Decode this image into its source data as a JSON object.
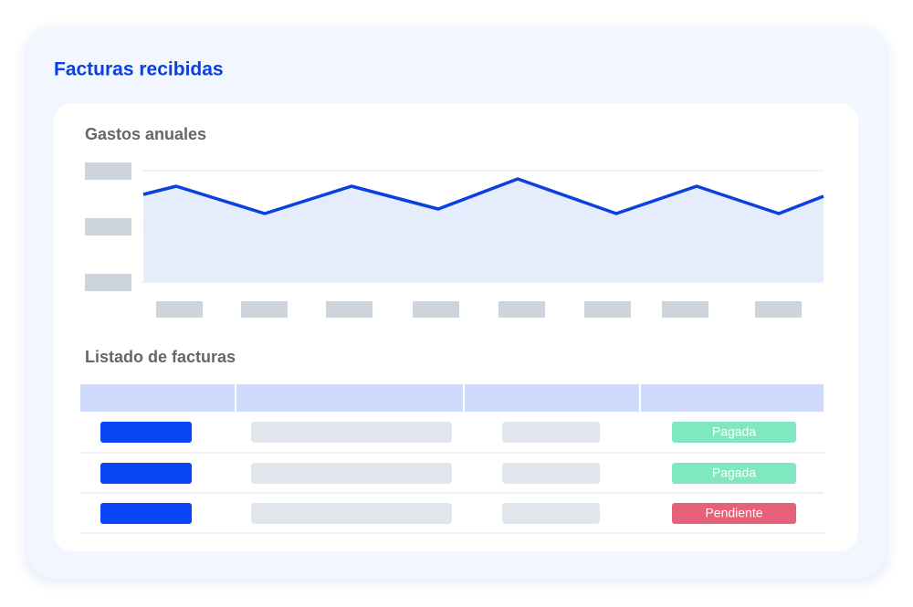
{
  "header": {
    "title": "Facturas recibidas"
  },
  "chart": {
    "title": "Gastos anuales"
  },
  "table": {
    "title": "Listado de facturas",
    "rows": [
      {
        "status": "Pagada"
      },
      {
        "status": "Pagada"
      },
      {
        "status": "Pendiente"
      }
    ]
  }
}
